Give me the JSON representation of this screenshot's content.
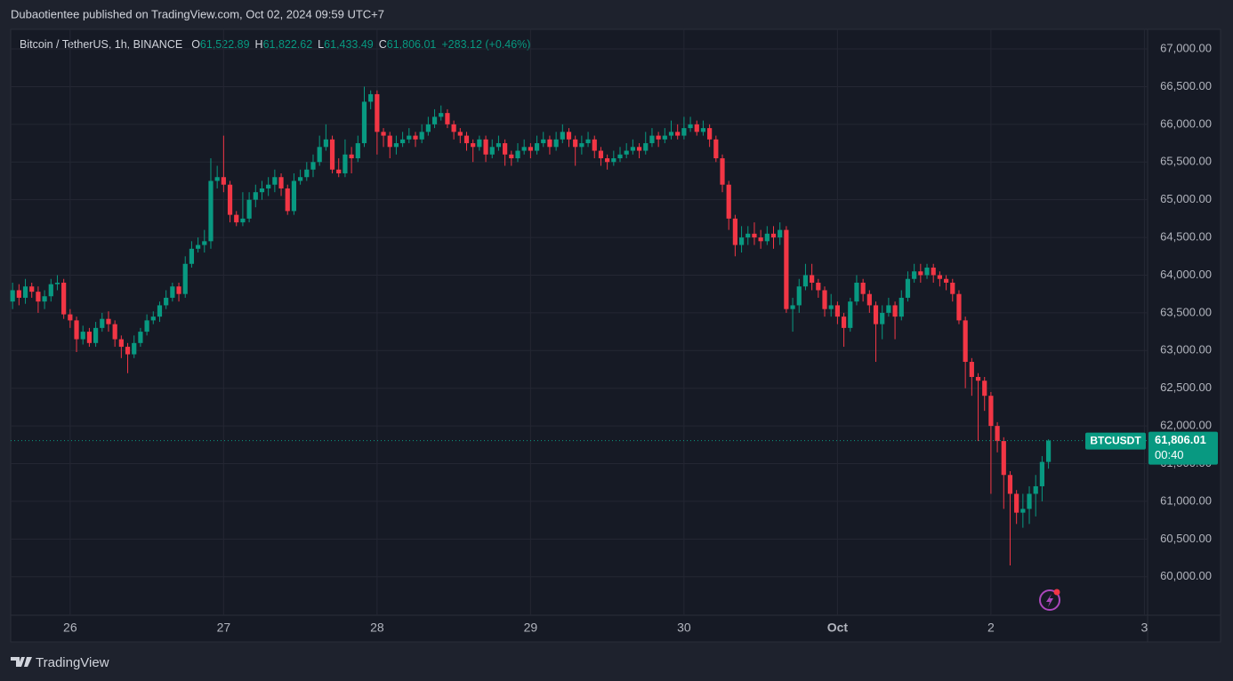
{
  "header": {
    "published": "Dubaotientee published on TradingView.com, Oct 02, 2024 09:59 UTC+7",
    "symbol": "Bitcoin / TetherUS, 1h, BINANCE",
    "ohlc": [
      {
        "key": "O",
        "value": "61,522.89"
      },
      {
        "key": "H",
        "value": "61,822.62"
      },
      {
        "key": "L",
        "value": "61,433.49"
      },
      {
        "key": "C",
        "value": "61,806.01"
      }
    ],
    "change": "+283.12 (+0.46%)"
  },
  "footer": {
    "logo": "TradingView"
  },
  "chart_data": {
    "type": "candlestick",
    "series": [
      {
        "name": "BTCUSDT",
        "up_color": "#089981",
        "down_color": "#f23645",
        "open": [
          63650,
          63800,
          63700,
          63850,
          63780,
          63650,
          63720,
          63880,
          63900,
          63480,
          63400,
          63150,
          63250,
          63100,
          63300,
          63420,
          63350,
          63150,
          63050,
          62950,
          63100,
          63250,
          63400,
          63450,
          63600,
          63700,
          63850,
          63750,
          64150,
          64350,
          64400,
          64450,
          65250,
          65300,
          65200,
          64800,
          64700,
          64750,
          65000,
          65100,
          65150,
          65200,
          65300,
          65150,
          64850,
          65250,
          65300,
          65400,
          65500,
          65700,
          65800,
          65400,
          65350,
          65600,
          65550,
          65750,
          66300,
          66400,
          65900,
          65850,
          65700,
          65750,
          65800,
          65850,
          65800,
          65900,
          66000,
          66100,
          66150,
          66000,
          65900,
          65850,
          65750,
          65700,
          65800,
          65600,
          65700,
          65750,
          65600,
          65550,
          65650,
          65700,
          65650,
          65750,
          65800,
          65700,
          65800,
          65900,
          65800,
          65700,
          65750,
          65800,
          65650,
          65550,
          65500,
          65550,
          65600,
          65650,
          65700,
          65650,
          65750,
          65850,
          65800,
          65850,
          65900,
          65850,
          65950,
          66000,
          65900,
          65950,
          65800,
          65550,
          65200,
          64750,
          64400,
          64500,
          64550,
          64500,
          64450,
          64550,
          64500,
          64600,
          63550,
          63600,
          63850,
          64000,
          63900,
          63800,
          63550,
          63600,
          63450,
          63300,
          63650,
          63900,
          63750,
          63600,
          63350,
          63500,
          63600,
          63450,
          63700,
          63950,
          64050,
          64000,
          64100,
          64000,
          63950,
          63900,
          63750,
          63400,
          62850,
          62650,
          62600,
          62400,
          62000,
          61800,
          61350,
          61100,
          60850,
          60900,
          61100,
          61200,
          61522.89
        ],
        "high": [
          63900,
          63880,
          63950,
          63900,
          63850,
          63800,
          63950,
          64000,
          63950,
          63550,
          63450,
          63330,
          63300,
          63380,
          63500,
          63520,
          63400,
          63200,
          63100,
          63200,
          63300,
          63480,
          63520,
          63650,
          63800,
          63900,
          63900,
          64250,
          64450,
          64500,
          64600,
          65550,
          65450,
          65850,
          65250,
          64850,
          65100,
          65100,
          65200,
          65250,
          65300,
          65400,
          65350,
          65200,
          65350,
          65400,
          65500,
          65600,
          65850,
          66000,
          65850,
          65550,
          65800,
          65700,
          65850,
          66500,
          66450,
          66450,
          65950,
          65900,
          65850,
          65900,
          65950,
          65900,
          66000,
          66100,
          66200,
          66250,
          66200,
          66050,
          65950,
          65900,
          65800,
          65850,
          65850,
          65800,
          65850,
          65800,
          65650,
          65750,
          65800,
          65750,
          65850,
          65900,
          65850,
          65900,
          66000,
          65950,
          65850,
          65850,
          65900,
          65850,
          65700,
          65600,
          65650,
          65700,
          65750,
          65800,
          65750,
          65900,
          65950,
          65900,
          65950,
          66050,
          66000,
          66100,
          66100,
          66050,
          66050,
          66000,
          65850,
          65600,
          65250,
          64800,
          64650,
          64650,
          64700,
          64600,
          64650,
          64650,
          64700,
          64650,
          63700,
          63950,
          64150,
          64150,
          63950,
          63850,
          63750,
          63650,
          63500,
          63700,
          64000,
          63950,
          63800,
          63650,
          63600,
          63700,
          63650,
          63800,
          64050,
          64150,
          64150,
          64150,
          64150,
          64050,
          64000,
          63950,
          63800,
          63450,
          62900,
          62700,
          62650,
          62450,
          62050,
          61850,
          61400,
          61150,
          61100,
          61200,
          61350,
          61600,
          61822.62
        ],
        "low": [
          63550,
          63600,
          63620,
          63700,
          63500,
          63550,
          63650,
          63800,
          63420,
          63300,
          62980,
          63080,
          63050,
          63050,
          63250,
          63250,
          63050,
          62900,
          62700,
          62900,
          63050,
          63200,
          63350,
          63380,
          63550,
          63650,
          63650,
          63700,
          64100,
          64300,
          64300,
          64350,
          65150,
          65100,
          64700,
          64650,
          64650,
          64700,
          64900,
          65000,
          65050,
          65100,
          65050,
          64800,
          64800,
          65200,
          65250,
          65300,
          65450,
          65650,
          65350,
          65300,
          65300,
          65350,
          65500,
          65700,
          66200,
          65600,
          65700,
          65550,
          65600,
          65700,
          65750,
          65700,
          65750,
          65850,
          65950,
          66050,
          65950,
          65800,
          65750,
          65650,
          65500,
          65650,
          65500,
          65550,
          65650,
          65450,
          65450,
          65500,
          65600,
          65550,
          65600,
          65700,
          65600,
          65650,
          65750,
          65700,
          65450,
          65600,
          65700,
          65550,
          65450,
          65400,
          65450,
          65500,
          65550,
          65600,
          65550,
          65600,
          65700,
          65700,
          65750,
          65800,
          65800,
          65800,
          65900,
          65850,
          65850,
          65700,
          65500,
          65100,
          64600,
          64250,
          64300,
          64400,
          64400,
          64350,
          64400,
          64350,
          64400,
          63500,
          63250,
          63500,
          63800,
          63800,
          63700,
          63450,
          63450,
          63350,
          63050,
          63250,
          63600,
          63650,
          63500,
          62850,
          63150,
          63450,
          63150,
          63400,
          63650,
          63900,
          63900,
          63950,
          63900,
          63850,
          63800,
          63650,
          63350,
          62500,
          62400,
          61800,
          62200,
          61100,
          61650,
          60900,
          60150,
          60700,
          60650,
          60700,
          60800,
          61000,
          61433.49
        ],
        "close": [
          63800,
          63700,
          63850,
          63780,
          63650,
          63720,
          63880,
          63900,
          63480,
          63400,
          63150,
          63250,
          63100,
          63300,
          63420,
          63350,
          63150,
          63050,
          62950,
          63100,
          63250,
          63400,
          63450,
          63600,
          63700,
          63850,
          63750,
          64150,
          64350,
          64400,
          64450,
          65250,
          65300,
          65200,
          64800,
          64700,
          64750,
          65000,
          65100,
          65150,
          65200,
          65300,
          65150,
          64850,
          65250,
          65300,
          65400,
          65500,
          65700,
          65800,
          65400,
          65350,
          65600,
          65550,
          65750,
          66300,
          66400,
          65900,
          65850,
          65700,
          65750,
          65800,
          65850,
          65800,
          65900,
          66000,
          66100,
          66150,
          66000,
          65900,
          65850,
          65750,
          65700,
          65800,
          65600,
          65700,
          65750,
          65600,
          65550,
          65650,
          65700,
          65650,
          65750,
          65800,
          65700,
          65800,
          65900,
          65800,
          65700,
          65750,
          65800,
          65650,
          65550,
          65500,
          65550,
          65600,
          65650,
          65700,
          65650,
          65750,
          65850,
          65800,
          65850,
          65900,
          65850,
          65950,
          66000,
          65900,
          65950,
          65800,
          65550,
          65200,
          64750,
          64400,
          64500,
          64550,
          64500,
          64450,
          64550,
          64500,
          64600,
          63550,
          63600,
          63850,
          64000,
          63900,
          63800,
          63550,
          63600,
          63450,
          63300,
          63650,
          63900,
          63750,
          63600,
          63350,
          63500,
          63600,
          63450,
          63700,
          63950,
          64050,
          64000,
          64100,
          64000,
          63950,
          63900,
          63750,
          63400,
          62850,
          62650,
          62600,
          62400,
          62000,
          61800,
          61350,
          61100,
          60850,
          60900,
          61100,
          61200,
          61522.89,
          61806.01
        ]
      }
    ],
    "ylim": [
      59490,
      67260
    ],
    "yticks": [
      {
        "value": 60000,
        "label": "60,000.00"
      },
      {
        "value": 60500,
        "label": "60,500.00"
      },
      {
        "value": 61000,
        "label": "61,000.00"
      },
      {
        "value": 61500,
        "label": "61,500.00"
      },
      {
        "value": 62000,
        "label": "62,000.00"
      },
      {
        "value": 62500,
        "label": "62,500.00"
      },
      {
        "value": 63000,
        "label": "63,000.00"
      },
      {
        "value": 63500,
        "label": "63,500.00"
      },
      {
        "value": 64000,
        "label": "64,000.00"
      },
      {
        "value": 64500,
        "label": "64,500.00"
      },
      {
        "value": 65000,
        "label": "65,000.00"
      },
      {
        "value": 65500,
        "label": "65,500.00"
      },
      {
        "value": 66000,
        "label": "66,000.00"
      },
      {
        "value": 66500,
        "label": "66,500.00"
      },
      {
        "value": 67000,
        "label": "67,000.00"
      }
    ],
    "xlim": [
      -0.3,
      177.5
    ],
    "xticks": [
      {
        "value": 9,
        "label": "26"
      },
      {
        "value": 33,
        "label": "27"
      },
      {
        "value": 57,
        "label": "28"
      },
      {
        "value": 81,
        "label": "29"
      },
      {
        "value": 105,
        "label": "30"
      },
      {
        "value": 129,
        "label": "Oct"
      },
      {
        "value": 153,
        "label": "2"
      },
      {
        "value": 177,
        "label": "3"
      }
    ],
    "grid": true,
    "last_price": {
      "label": "61,806.01",
      "countdown": "00:40"
    }
  }
}
